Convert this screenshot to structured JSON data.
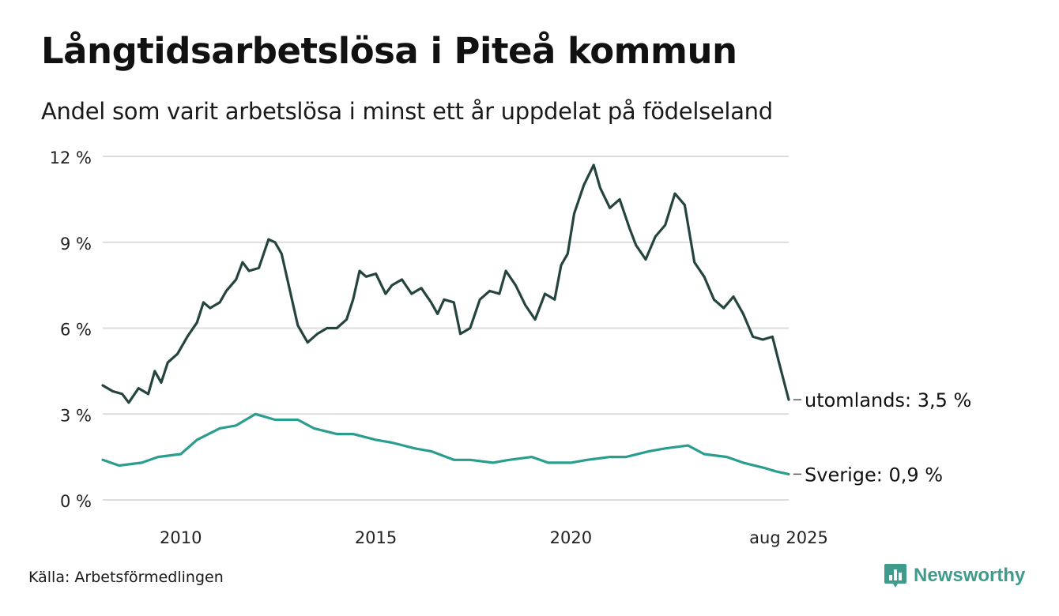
{
  "title": "Långtidsarbetslösa i Piteå kommun",
  "subtitle": "Andel som varit arbetslösa i minst ett år uppdelat på födelseland",
  "source": "Källa: Arbetsförmedlingen",
  "brand": "Newsworthy",
  "chart_data": {
    "type": "line",
    "title": "Långtidsarbetslösa i Piteå kommun",
    "subtitle": "Andel som varit arbetslösa i minst ett år uppdelat på födelseland",
    "y_unit": "%",
    "ylim": [
      0,
      12
    ],
    "y_ticks": [
      0,
      3,
      6,
      9,
      12
    ],
    "y_tick_labels": [
      "0 %",
      "3 %",
      "6 %",
      "9 %",
      "12 %"
    ],
    "xlim": [
      "2008-01",
      "2025-08"
    ],
    "x_ticks": [
      "2010-01",
      "2015-01",
      "2020-01",
      "2025-08"
    ],
    "x_tick_labels": [
      "2010",
      "2015",
      "2020",
      "aug 2025"
    ],
    "grid": "horizontal",
    "legend": "end labels",
    "series": [
      {
        "name": "utomlands",
        "end_label": "utomlands: 3,5 %",
        "color": "#26443f",
        "points": [
          [
            "2008-01",
            4.0
          ],
          [
            "2008-04",
            3.8
          ],
          [
            "2008-07",
            3.7
          ],
          [
            "2008-09",
            3.4
          ],
          [
            "2008-12",
            3.9
          ],
          [
            "2009-03",
            3.7
          ],
          [
            "2009-05",
            4.5
          ],
          [
            "2009-07",
            4.1
          ],
          [
            "2009-09",
            4.8
          ],
          [
            "2009-12",
            5.1
          ],
          [
            "2010-03",
            5.7
          ],
          [
            "2010-06",
            6.2
          ],
          [
            "2010-08",
            6.9
          ],
          [
            "2010-10",
            6.7
          ],
          [
            "2011-01",
            6.9
          ],
          [
            "2011-03",
            7.3
          ],
          [
            "2011-06",
            7.7
          ],
          [
            "2011-08",
            8.3
          ],
          [
            "2011-10",
            8.0
          ],
          [
            "2012-01",
            8.1
          ],
          [
            "2012-04",
            9.1
          ],
          [
            "2012-06",
            9.0
          ],
          [
            "2012-08",
            8.6
          ],
          [
            "2012-10",
            7.6
          ],
          [
            "2013-01",
            6.1
          ],
          [
            "2013-04",
            5.5
          ],
          [
            "2013-07",
            5.8
          ],
          [
            "2013-10",
            6.0
          ],
          [
            "2014-01",
            6.0
          ],
          [
            "2014-04",
            6.3
          ],
          [
            "2014-06",
            7.0
          ],
          [
            "2014-08",
            8.0
          ],
          [
            "2014-10",
            7.8
          ],
          [
            "2015-01",
            7.9
          ],
          [
            "2015-04",
            7.2
          ],
          [
            "2015-06",
            7.5
          ],
          [
            "2015-09",
            7.7
          ],
          [
            "2015-12",
            7.2
          ],
          [
            "2016-03",
            7.4
          ],
          [
            "2016-06",
            6.9
          ],
          [
            "2016-08",
            6.5
          ],
          [
            "2016-10",
            7.0
          ],
          [
            "2017-01",
            6.9
          ],
          [
            "2017-03",
            5.8
          ],
          [
            "2017-06",
            6.0
          ],
          [
            "2017-09",
            7.0
          ],
          [
            "2017-12",
            7.3
          ],
          [
            "2018-03",
            7.2
          ],
          [
            "2018-05",
            8.0
          ],
          [
            "2018-08",
            7.5
          ],
          [
            "2018-11",
            6.8
          ],
          [
            "2019-02",
            6.3
          ],
          [
            "2019-05",
            7.2
          ],
          [
            "2019-08",
            7.0
          ],
          [
            "2019-10",
            8.2
          ],
          [
            "2019-12",
            8.6
          ],
          [
            "2020-02",
            10.0
          ],
          [
            "2020-05",
            11.0
          ],
          [
            "2020-08",
            11.7
          ],
          [
            "2020-10",
            10.9
          ],
          [
            "2021-01",
            10.2
          ],
          [
            "2021-04",
            10.5
          ],
          [
            "2021-07",
            9.5
          ],
          [
            "2021-09",
            8.9
          ],
          [
            "2021-12",
            8.4
          ],
          [
            "2022-03",
            9.2
          ],
          [
            "2022-06",
            9.6
          ],
          [
            "2022-09",
            10.7
          ],
          [
            "2022-12",
            10.3
          ],
          [
            "2023-03",
            8.3
          ],
          [
            "2023-06",
            7.8
          ],
          [
            "2023-09",
            7.0
          ],
          [
            "2023-12",
            6.7
          ],
          [
            "2024-03",
            7.1
          ],
          [
            "2024-06",
            6.5
          ],
          [
            "2024-09",
            5.7
          ],
          [
            "2024-12",
            5.6
          ],
          [
            "2025-03",
            5.7
          ],
          [
            "2025-05",
            4.8
          ],
          [
            "2025-08",
            3.5
          ]
        ]
      },
      {
        "name": "Sverige",
        "end_label": "Sverige: 0,9 %",
        "color": "#2a9d8f",
        "points": [
          [
            "2008-01",
            1.4
          ],
          [
            "2008-06",
            1.2
          ],
          [
            "2009-01",
            1.3
          ],
          [
            "2009-06",
            1.5
          ],
          [
            "2010-01",
            1.6
          ],
          [
            "2010-06",
            2.1
          ],
          [
            "2011-01",
            2.5
          ],
          [
            "2011-06",
            2.6
          ],
          [
            "2011-12",
            3.0
          ],
          [
            "2012-06",
            2.8
          ],
          [
            "2013-01",
            2.8
          ],
          [
            "2013-06",
            2.5
          ],
          [
            "2014-01",
            2.3
          ],
          [
            "2014-06",
            2.3
          ],
          [
            "2015-01",
            2.1
          ],
          [
            "2015-06",
            2.0
          ],
          [
            "2016-01",
            1.8
          ],
          [
            "2016-06",
            1.7
          ],
          [
            "2017-01",
            1.4
          ],
          [
            "2017-06",
            1.4
          ],
          [
            "2018-01",
            1.3
          ],
          [
            "2018-06",
            1.4
          ],
          [
            "2019-01",
            1.5
          ],
          [
            "2019-06",
            1.3
          ],
          [
            "2020-01",
            1.3
          ],
          [
            "2020-06",
            1.4
          ],
          [
            "2021-01",
            1.5
          ],
          [
            "2021-06",
            1.5
          ],
          [
            "2022-01",
            1.7
          ],
          [
            "2022-06",
            1.8
          ],
          [
            "2023-01",
            1.9
          ],
          [
            "2023-06",
            1.6
          ],
          [
            "2024-01",
            1.5
          ],
          [
            "2024-06",
            1.3
          ],
          [
            "2025-01",
            1.1
          ],
          [
            "2025-04",
            1.0
          ],
          [
            "2025-08",
            0.9
          ]
        ]
      }
    ]
  }
}
